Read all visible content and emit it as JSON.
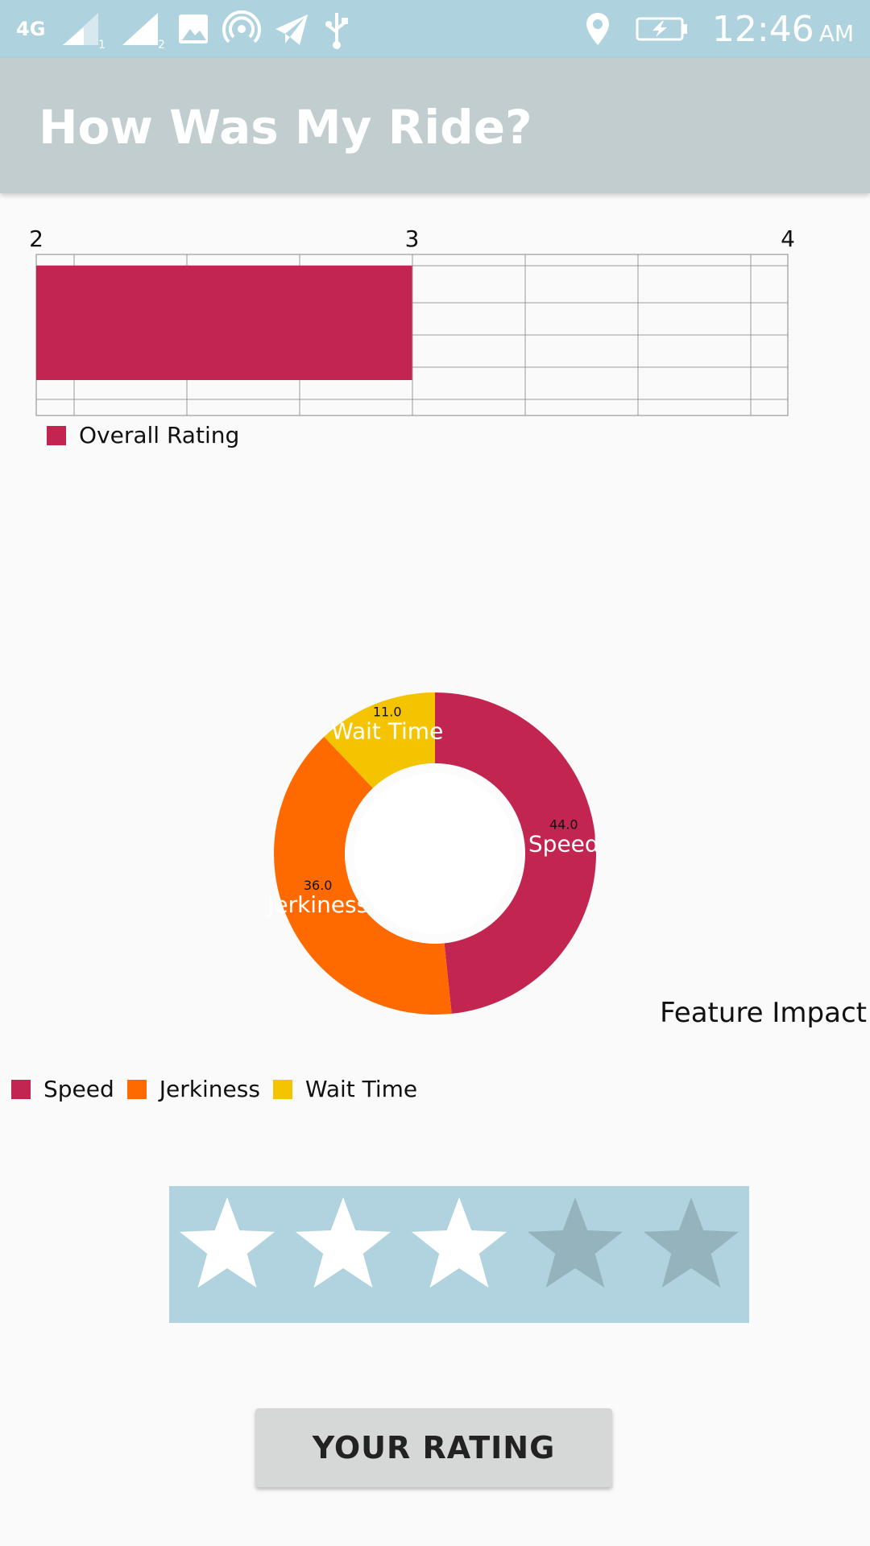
{
  "status_bar": {
    "network_label": "4G",
    "sim1_label": "1",
    "sim2_label": "2",
    "time": "12:46",
    "ampm": "AM",
    "icons": [
      "signal-icon",
      "gallery-icon",
      "hotspot-icon",
      "telegram-icon",
      "usb-icon",
      "location-icon",
      "battery-charging-icon"
    ]
  },
  "app_bar": {
    "title": "How Was My Ride?"
  },
  "chart_data": [
    {
      "type": "bar",
      "orientation": "horizontal",
      "series": [
        {
          "name": "Overall Rating",
          "values": [
            3.0
          ]
        }
      ],
      "xlim": [
        2,
        4
      ],
      "ticks": [
        "2",
        "3",
        "4"
      ],
      "grid": true,
      "legend": "bottom-left",
      "color": "#c2254f"
    },
    {
      "type": "pie",
      "style": "donut",
      "title": "Feature Impact",
      "slices": [
        {
          "label": "Speed",
          "value": 44.0,
          "value_label": "44.0",
          "color": "#c2254f"
        },
        {
          "label": "Jerkiness",
          "value": 36.0,
          "value_label": "36.0",
          "color": "#ff6a00"
        },
        {
          "label": "Wait Time",
          "value": 11.0,
          "value_label": "11.0",
          "color": "#f5c400"
        }
      ],
      "legend": "bottom-left"
    }
  ],
  "rating": {
    "value": 3,
    "max": 5,
    "filled_color": "#ffffff",
    "empty_color": "#94b3bd",
    "background": "#b0d3df"
  },
  "button": {
    "label": "YOUR RATING"
  }
}
